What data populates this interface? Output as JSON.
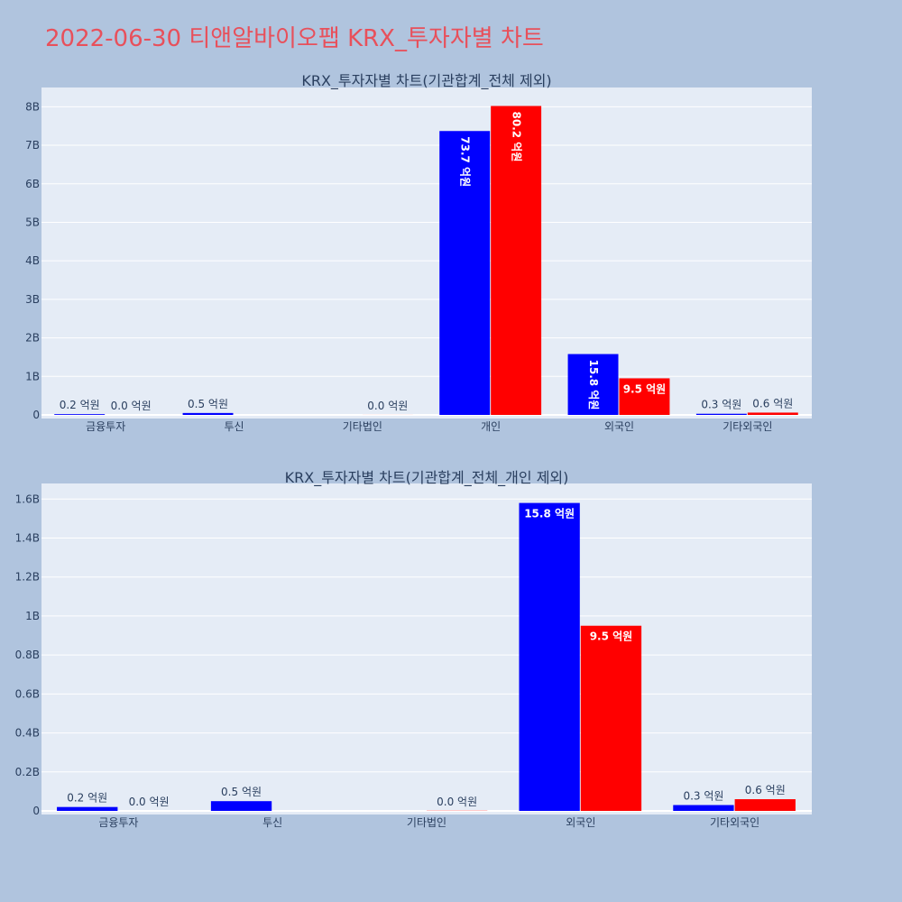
{
  "page": {
    "title": "2022-06-30 티앤알바이오팹 KRX_투자자별 차트",
    "title_color": "#e8505b",
    "background": "#b0c4de",
    "plot_background": "#e5ecf6"
  },
  "chart_data": [
    {
      "type": "bar",
      "title": "KRX_투자자별 차트(기관합계_전체 제외)",
      "categories": [
        "금융투자",
        "투신",
        "기타법인",
        "개인",
        "외국인",
        "기타외국인"
      ],
      "series": [
        {
          "color": "#0000ff",
          "values": [
            20000000,
            50000000,
            0,
            7370000000,
            1580000000,
            30000000
          ],
          "labels": [
            "0.2 억원",
            "0.5 억원",
            "",
            "73.7 억원",
            "15.8 억원",
            "0.3 억원"
          ]
        },
        {
          "color": "#ff0000",
          "values": [
            0,
            0,
            1000000,
            8020000000,
            950000000,
            60000000
          ],
          "labels": [
            "0.0 억원",
            "",
            "0.0 억원",
            "80.2 억원",
            "9.5 억원",
            "0.6 억원"
          ]
        }
      ],
      "ylim": [
        0,
        8500000000
      ],
      "yticks": [
        0,
        1000000000,
        2000000000,
        3000000000,
        4000000000,
        5000000000,
        6000000000,
        7000000000,
        8000000000
      ],
      "yticklabels": [
        "0",
        "1B",
        "2B",
        "3B",
        "4B",
        "5B",
        "6B",
        "7B",
        "8B"
      ],
      "grid": true
    },
    {
      "type": "bar",
      "title": "KRX_투자자별 차트(기관합계_전체_개인 제외)",
      "categories": [
        "금융투자",
        "투신",
        "기타법인",
        "외국인",
        "기타외국인"
      ],
      "series": [
        {
          "color": "#0000ff",
          "values": [
            20000000,
            50000000,
            0,
            1580000000,
            30000000
          ],
          "labels": [
            "0.2 억원",
            "0.5 억원",
            "",
            "15.8 억원",
            "0.3 억원"
          ]
        },
        {
          "color": "#ff0000",
          "values": [
            0,
            0,
            1000000,
            950000000,
            60000000
          ],
          "labels": [
            "0.0 억원",
            "",
            "0.0 억원",
            "9.5 억원",
            "0.6 억원"
          ]
        }
      ],
      "ylim": [
        0,
        1680000000
      ],
      "yticks": [
        0,
        200000000,
        400000000,
        600000000,
        800000000,
        1000000000,
        1200000000,
        1400000000,
        1600000000
      ],
      "yticklabels": [
        "0",
        "0.2B",
        "0.4B",
        "0.6B",
        "0.8B",
        "1B",
        "1.2B",
        "1.4B",
        "1.6B"
      ],
      "grid": true
    }
  ]
}
